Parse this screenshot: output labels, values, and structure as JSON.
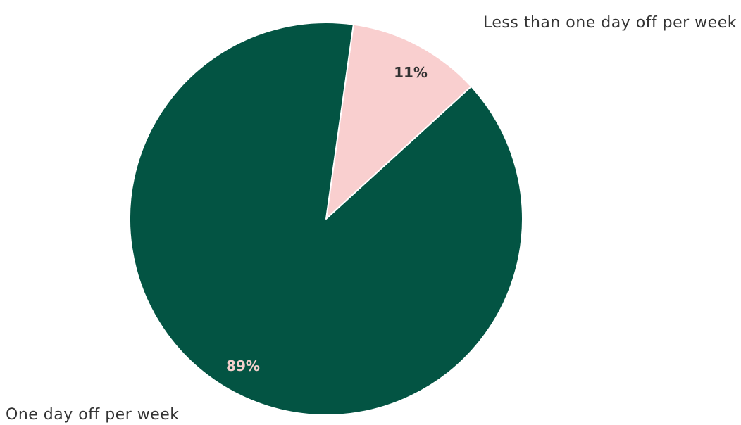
{
  "chart_data": {
    "type": "pie",
    "slices": [
      {
        "label": "Less than one day off per week",
        "value": 11,
        "display": "11%",
        "color": "#f9cfcf",
        "label_color": "#333333"
      },
      {
        "label": "One day off per week",
        "value": 89,
        "display": "89%",
        "color": "#035443",
        "label_color": "#f5d0cc"
      }
    ],
    "start_angle_deg": 8,
    "direction": "clockwise",
    "slice_border_color": "#ffffff"
  }
}
